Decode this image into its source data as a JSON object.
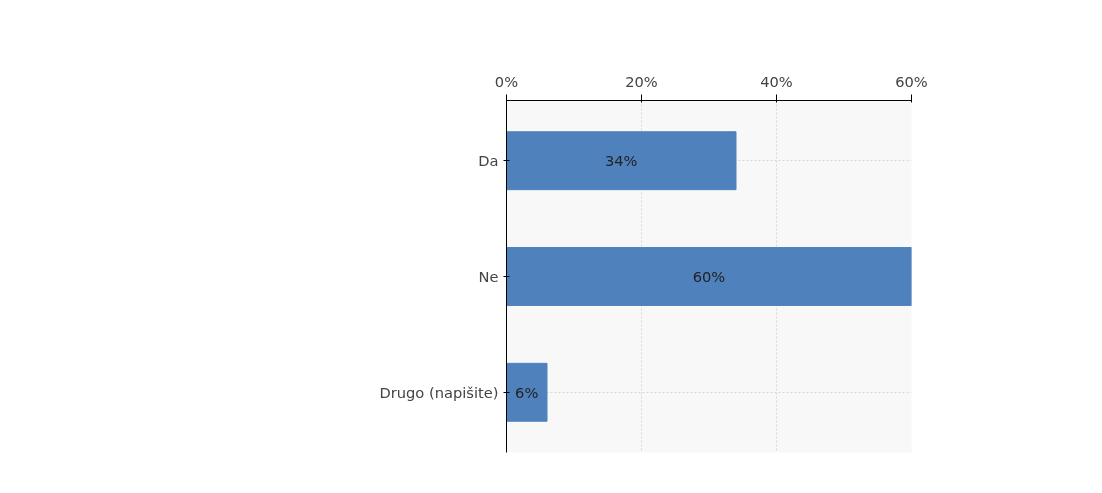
{
  "chart_data": {
    "type": "bar",
    "orientation": "horizontal",
    "categories": [
      "Da",
      "Ne",
      "Drugo (napišite)"
    ],
    "values": [
      34,
      60,
      6
    ],
    "value_labels": [
      "34%",
      "60%",
      "6%"
    ],
    "color": "#4f81bd",
    "xlim": [
      0,
      60
    ],
    "xticks": [
      {
        "value": 0,
        "label": "0%"
      },
      {
        "value": 20,
        "label": "20%"
      },
      {
        "value": 40,
        "label": "40%"
      },
      {
        "value": 60,
        "label": "60%"
      }
    ],
    "grid": true
  }
}
